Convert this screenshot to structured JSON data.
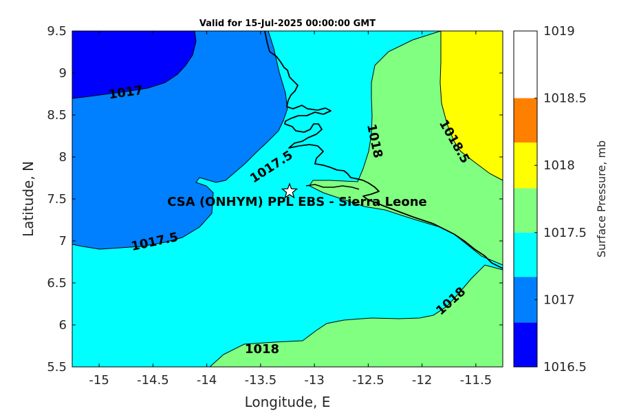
{
  "chart_data": {
    "type": "heatmap",
    "title": "Valid for 15-Jul-2025 00:00:00 GMT",
    "xlabel": "Longitude, E",
    "ylabel": "Latitude, N",
    "xlim": [
      -15.25,
      -11.25
    ],
    "ylim": [
      5.5,
      9.5
    ],
    "xticks": [
      "-15",
      "-14.5",
      "-14",
      "-13.5",
      "-13",
      "-12.5",
      "-12",
      "-11.5"
    ],
    "yticks": [
      "5.5",
      "6",
      "6.5",
      "7",
      "7.5",
      "8",
      "8.5",
      "9",
      "9.5"
    ],
    "colorbar": {
      "label": "Surface Pressure, mb",
      "ticks": [
        "1016.5",
        "1017",
        "1017.5",
        "1018",
        "1018.5",
        "1019"
      ],
      "levels": [
        {
          "from": 1016.5,
          "to": 1016.83,
          "color": "#0000ff"
        },
        {
          "from": 1016.83,
          "to": 1017.17,
          "color": "#0080ff"
        },
        {
          "from": 1017.17,
          "to": 1017.5,
          "color": "#00ffff"
        },
        {
          "from": 1017.5,
          "to": 1017.83,
          "color": "#80ff80"
        },
        {
          "from": 1017.83,
          "to": 1018.17,
          "color": "#ffff00"
        },
        {
          "from": 1018.17,
          "to": 1018.5,
          "color": "#ff8000"
        }
      ]
    },
    "contour_labels": [
      "1017",
      "1017.5",
      "1017.5",
      "1018",
      "1018.5",
      "1018",
      "1018"
    ],
    "site": {
      "name": "CSA (ONHYM) PPL EBS  - Sierra Leone",
      "lon": -13.23,
      "lat": 7.6
    }
  }
}
